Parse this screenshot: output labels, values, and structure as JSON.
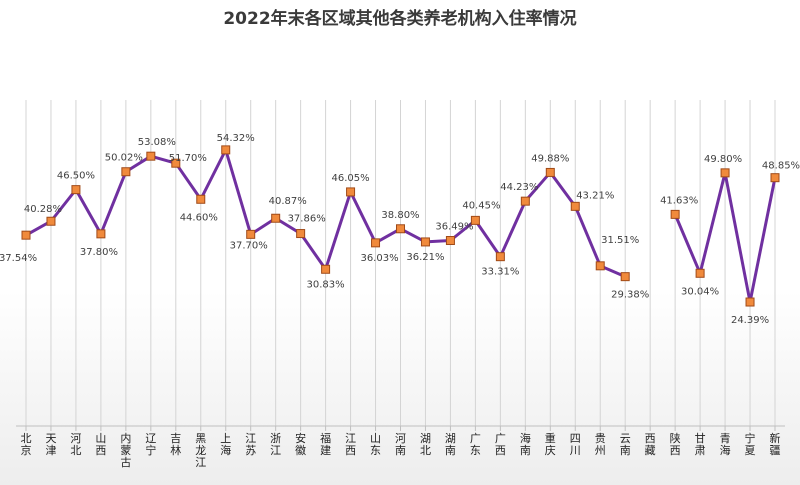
{
  "chart_data": {
    "type": "line",
    "title": "2022年末各区域其他各类养老机构入住率情况",
    "categories": [
      "北京",
      "天津",
      "河北",
      "山西",
      "内蒙古",
      "辽宁",
      "吉林",
      "黑龙江",
      "上海",
      "江苏",
      "浙江",
      "安徽",
      "福建",
      "江西",
      "山东",
      "河南",
      "湖北",
      "湖南",
      "广东",
      "广西",
      "海南",
      "重庆",
      "四川",
      "贵州",
      "云南",
      "西藏",
      "陕西",
      "甘肃",
      "青海",
      "宁夏",
      "新疆"
    ],
    "series": [
      {
        "values": [
          37.54,
          40.28,
          46.5,
          37.8,
          50.02,
          53.08,
          51.7,
          44.6,
          54.32,
          37.7,
          40.87,
          37.86,
          30.83,
          46.05,
          36.03,
          38.8,
          36.21,
          36.49,
          40.45,
          33.31,
          44.23,
          49.88,
          43.21,
          31.51,
          29.38,
          null,
          41.63,
          30.04,
          49.8,
          24.39,
          48.85
        ],
        "labels": [
          "37.54%",
          "40.28%",
          "46.50%",
          "37.80%",
          "50.02%",
          "53.08%",
          "51.70%",
          "44.60%",
          "54.32%",
          "37.70%",
          "40.87%",
          "37.86%",
          "30.83%",
          "46.05%",
          "36.03%",
          "38.80%",
          "36.21%",
          "36.49%",
          "40.45%",
          "33.31%",
          "44.23%",
          "49.88%",
          "43.21%",
          "31.51%",
          "29.38%",
          "",
          "41.63%",
          "30.04%",
          "49.80%",
          "24.39%",
          "48.85%"
        ]
      }
    ],
    "ylim": [
      0,
      72
    ],
    "grid": "vertical",
    "colors": {
      "line": "#7030a0",
      "marker_fill": "#f08a3c",
      "marker_edge": "#a04a18",
      "grid": "#d4d4d4"
    }
  }
}
